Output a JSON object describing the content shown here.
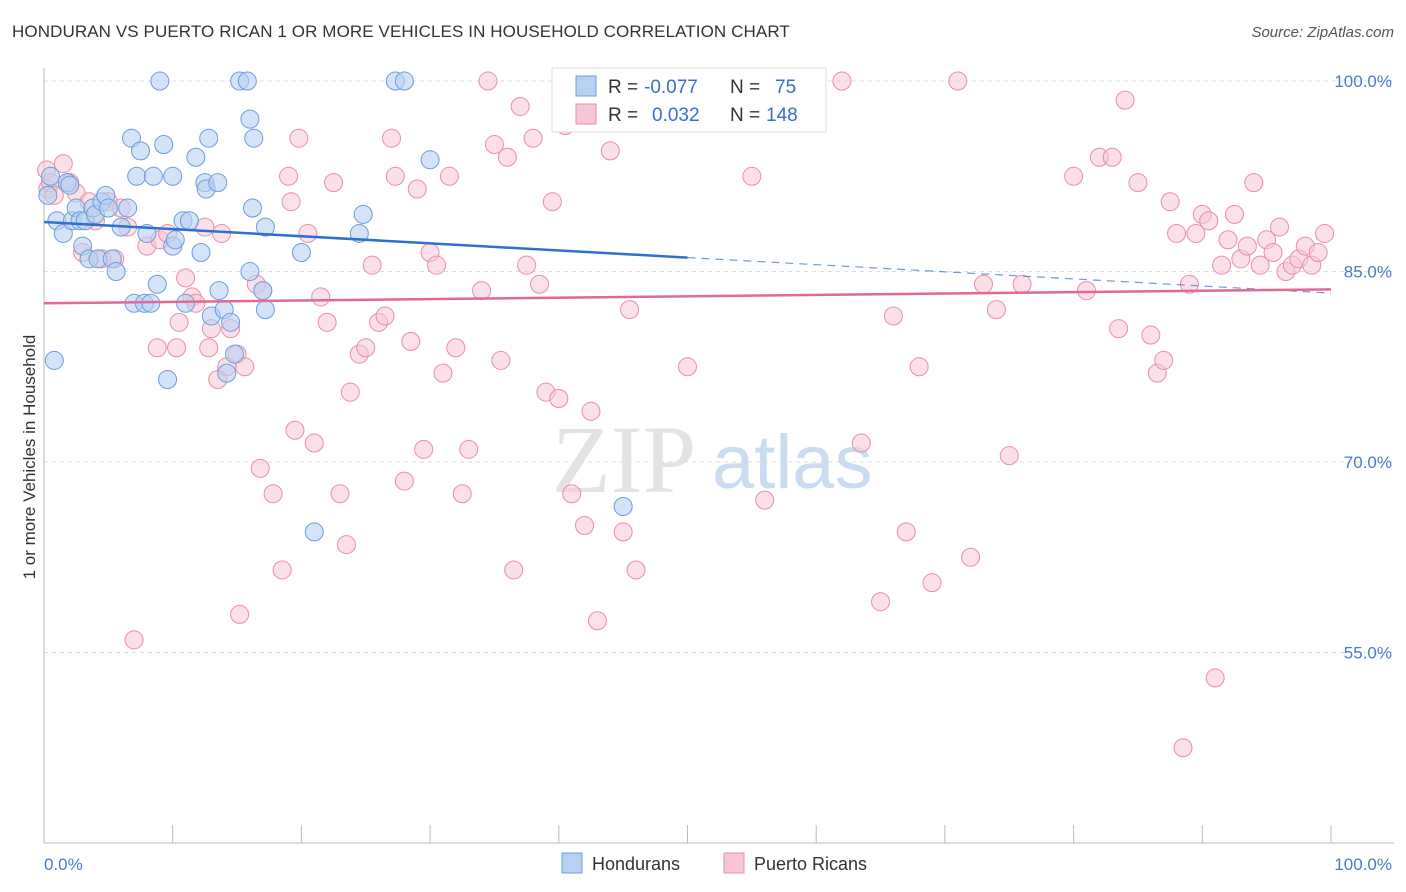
{
  "title": "HONDURAN VS PUERTO RICAN 1 OR MORE VEHICLES IN HOUSEHOLD CORRELATION CHART",
  "source": "Source: ZipAtlas.com",
  "watermark": {
    "zip": "ZIP",
    "atlas": "atlas"
  },
  "colors": {
    "blue_fill": "#b7d1f3",
    "blue_stroke": "#6b9ddb",
    "blue_line": "#2f6fcf",
    "pink_fill": "#f7c6d6",
    "pink_stroke": "#e88eaa",
    "pink_line": "#e06a93",
    "axis_text": "#4a7bc8",
    "grid": "#dddddd"
  },
  "legend": {
    "rows": [
      {
        "r_label": "R =",
        "r_value": "-0.077",
        "n_label": "N =",
        "n_value": "75"
      },
      {
        "r_label": "R =",
        "r_value": "0.032",
        "n_label": "N =",
        "n_value": "148"
      }
    ]
  },
  "bottom_legend": [
    "Hondurans",
    "Puerto Ricans"
  ],
  "chart_data": {
    "type": "scatter",
    "title": "HONDURAN VS PUERTO RICAN 1 OR MORE VEHICLES IN HOUSEHOLD CORRELATION CHART",
    "xlabel": "",
    "ylabel": "1 or more Vehicles in Household",
    "xlim": [
      0,
      100
    ],
    "ylim": [
      40,
      101.5
    ],
    "x_tick_labels": [
      "0.0%",
      "100.0%"
    ],
    "y_ticks": [
      55,
      70,
      85,
      100
    ],
    "y_tick_labels": [
      "55.0%",
      "70.0%",
      "85.0%",
      "100.0%"
    ],
    "grid": true,
    "legend_position": "top-center",
    "series": [
      {
        "name": "Hondurans",
        "color": "#6b9ddb",
        "trend": {
          "x": [
            0,
            50
          ],
          "y": [
            88.9,
            86.1
          ],
          "dashed_to": [
            100,
            83.3
          ]
        },
        "points": [
          [
            0.3,
            91
          ],
          [
            0.5,
            92.5
          ],
          [
            0.8,
            78
          ],
          [
            1,
            89
          ],
          [
            1.5,
            88
          ],
          [
            1.8,
            92
          ],
          [
            2,
            91.8
          ],
          [
            2.2,
            89
          ],
          [
            2.5,
            90
          ],
          [
            2.8,
            89
          ],
          [
            3,
            87
          ],
          [
            3.2,
            89
          ],
          [
            3.5,
            86
          ],
          [
            3.8,
            90
          ],
          [
            4,
            89.5
          ],
          [
            4.2,
            86
          ],
          [
            4.5,
            90.5
          ],
          [
            4.8,
            91
          ],
          [
            5,
            90
          ],
          [
            5.3,
            86
          ],
          [
            5.6,
            85
          ],
          [
            6,
            88.5
          ],
          [
            6.5,
            90
          ],
          [
            6.8,
            95.5
          ],
          [
            7,
            82.5
          ],
          [
            7.2,
            92.5
          ],
          [
            7.8,
            82.5
          ],
          [
            7.5,
            94.5
          ],
          [
            8,
            88
          ],
          [
            8.3,
            82.5
          ],
          [
            8.5,
            92.5
          ],
          [
            8.8,
            84
          ],
          [
            9,
            100
          ],
          [
            9.3,
            95
          ],
          [
            9.6,
            76.5
          ],
          [
            10,
            92.5
          ],
          [
            10,
            87
          ],
          [
            10.2,
            87.5
          ],
          [
            10.8,
            89
          ],
          [
            11,
            82.5
          ],
          [
            11.3,
            89
          ],
          [
            11.8,
            94
          ],
          [
            12.2,
            86.5
          ],
          [
            12.5,
            92
          ],
          [
            12.6,
            91.5
          ],
          [
            12.8,
            95.5
          ],
          [
            13,
            81.5
          ],
          [
            13.5,
            92
          ],
          [
            13.6,
            83.5
          ],
          [
            14,
            82
          ],
          [
            14.2,
            77
          ],
          [
            14.5,
            81
          ],
          [
            14.8,
            78.5
          ],
          [
            15.2,
            100
          ],
          [
            15.8,
            100
          ],
          [
            16,
            97
          ],
          [
            16.2,
            90
          ],
          [
            16.3,
            95.5
          ],
          [
            16,
            85
          ],
          [
            17.2,
            82
          ],
          [
            17.2,
            88.5
          ],
          [
            17,
            83.5
          ],
          [
            20,
            86.5
          ],
          [
            21,
            64.5
          ],
          [
            24.5,
            88
          ],
          [
            24.8,
            89.5
          ],
          [
            27.3,
            100
          ],
          [
            28,
            100
          ],
          [
            30,
            93.8
          ],
          [
            45,
            66.5
          ]
        ]
      },
      {
        "name": "Puerto Ricans",
        "color": "#e88eaa",
        "trend": {
          "x": [
            0,
            100
          ],
          "y": [
            82.5,
            83.6
          ]
        },
        "points": [
          [
            0.2,
            93
          ],
          [
            0.3,
            91.5
          ],
          [
            0.5,
            92
          ],
          [
            0.8,
            91
          ],
          [
            1.5,
            93.5
          ],
          [
            2,
            92
          ],
          [
            2.5,
            91.2
          ],
          [
            3,
            86.5
          ],
          [
            3.5,
            90.5
          ],
          [
            4,
            89
          ],
          [
            4.5,
            86
          ],
          [
            5,
            90.5
          ],
          [
            5.5,
            86
          ],
          [
            6,
            90
          ],
          [
            6.5,
            88.5
          ],
          [
            7,
            56
          ],
          [
            8,
            87
          ],
          [
            8.8,
            79
          ],
          [
            9,
            87.5
          ],
          [
            9.6,
            88
          ],
          [
            10.3,
            79
          ],
          [
            10.5,
            81
          ],
          [
            11,
            84.5
          ],
          [
            11.5,
            83
          ],
          [
            11.8,
            82.5
          ],
          [
            12.5,
            88.5
          ],
          [
            12.8,
            79
          ],
          [
            13,
            80.5
          ],
          [
            13.5,
            76.5
          ],
          [
            13.8,
            88
          ],
          [
            14.2,
            77.5
          ],
          [
            14.5,
            80.5
          ],
          [
            15,
            78.5
          ],
          [
            15.2,
            58
          ],
          [
            15.6,
            77.5
          ],
          [
            16.5,
            84
          ],
          [
            16.8,
            69.5
          ],
          [
            17,
            83.5
          ],
          [
            17.8,
            67.5
          ],
          [
            18.5,
            61.5
          ],
          [
            19,
            92.5
          ],
          [
            19.2,
            90.5
          ],
          [
            19.5,
            72.5
          ],
          [
            19.8,
            95.5
          ],
          [
            20.5,
            88
          ],
          [
            21,
            71.5
          ],
          [
            21.5,
            83
          ],
          [
            22,
            81
          ],
          [
            22.5,
            92
          ],
          [
            23,
            67.5
          ],
          [
            23.5,
            63.5
          ],
          [
            23.8,
            75.5
          ],
          [
            24.5,
            78.5
          ],
          [
            25,
            79
          ],
          [
            25.5,
            85.5
          ],
          [
            26,
            81
          ],
          [
            26.5,
            81.5
          ],
          [
            27,
            95.5
          ],
          [
            27.3,
            92.5
          ],
          [
            28,
            68.5
          ],
          [
            28.5,
            79.5
          ],
          [
            29,
            91.5
          ],
          [
            29.5,
            71
          ],
          [
            30,
            86.5
          ],
          [
            30.5,
            85.5
          ],
          [
            31,
            77
          ],
          [
            31.5,
            92.5
          ],
          [
            32,
            79
          ],
          [
            32.5,
            67.5
          ],
          [
            33,
            71
          ],
          [
            34,
            83.5
          ],
          [
            34.5,
            100
          ],
          [
            35,
            95
          ],
          [
            35.5,
            78
          ],
          [
            36,
            94
          ],
          [
            36.5,
            61.5
          ],
          [
            37,
            98
          ],
          [
            37.5,
            85.5
          ],
          [
            38,
            95.5
          ],
          [
            38.5,
            84
          ],
          [
            39,
            75.5
          ],
          [
            39.5,
            90.5
          ],
          [
            40,
            75
          ],
          [
            40.5,
            96.5
          ],
          [
            41,
            67.5
          ],
          [
            42,
            65
          ],
          [
            42.5,
            74
          ],
          [
            43,
            57.5
          ],
          [
            44,
            94.5
          ],
          [
            44.5,
            100
          ],
          [
            45,
            64.5
          ],
          [
            45.5,
            82
          ],
          [
            46,
            61.5
          ],
          [
            46.5,
            100
          ],
          [
            50,
            77.5
          ],
          [
            52,
            100
          ],
          [
            53,
            100
          ],
          [
            54,
            100
          ],
          [
            55,
            92.5
          ],
          [
            56,
            67
          ],
          [
            58,
            100
          ],
          [
            60,
            100
          ],
          [
            62,
            100
          ],
          [
            63.5,
            71.5
          ],
          [
            65,
            59
          ],
          [
            66,
            81.5
          ],
          [
            67,
            64.5
          ],
          [
            68,
            77.5
          ],
          [
            69,
            60.5
          ],
          [
            71,
            100
          ],
          [
            72,
            62.5
          ],
          [
            73,
            84
          ],
          [
            74,
            82
          ],
          [
            75,
            70.5
          ],
          [
            76,
            84
          ],
          [
            80,
            92.5
          ],
          [
            81,
            83.5
          ],
          [
            82,
            94
          ],
          [
            83,
            94
          ],
          [
            83.5,
            80.5
          ],
          [
            84,
            98.5
          ],
          [
            85,
            92
          ],
          [
            86,
            80
          ],
          [
            86.5,
            77
          ],
          [
            87,
            78
          ],
          [
            87.5,
            90.5
          ],
          [
            88,
            88
          ],
          [
            88.5,
            47.5
          ],
          [
            89,
            84
          ],
          [
            89.5,
            88
          ],
          [
            90,
            89.5
          ],
          [
            90.5,
            89
          ],
          [
            91,
            53
          ],
          [
            91.5,
            85.5
          ],
          [
            92,
            87.5
          ],
          [
            92.5,
            89.5
          ],
          [
            93,
            86
          ],
          [
            93.5,
            87
          ],
          [
            94,
            92
          ],
          [
            94.5,
            85.5
          ],
          [
            95,
            87.5
          ],
          [
            95.5,
            86.5
          ],
          [
            96,
            88.5
          ],
          [
            96.5,
            85
          ],
          [
            97,
            85.5
          ],
          [
            97.5,
            86
          ],
          [
            98,
            87
          ],
          [
            98.5,
            85.5
          ],
          [
            99,
            86.5
          ],
          [
            99.5,
            88
          ]
        ]
      }
    ]
  }
}
